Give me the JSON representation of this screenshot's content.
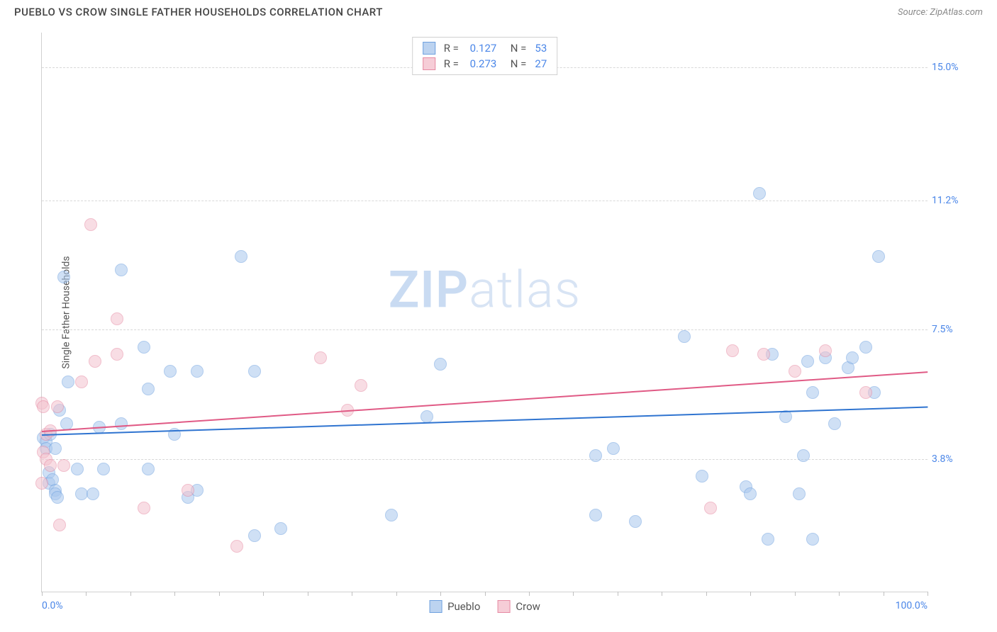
{
  "header": {
    "title": "PUEBLO VS CROW SINGLE FATHER HOUSEHOLDS CORRELATION CHART",
    "source": "Source: ZipAtlas.com"
  },
  "watermark": {
    "bold": "ZIP",
    "light": "atlas"
  },
  "chart": {
    "type": "scatter",
    "ylabel": "Single Father Households",
    "background_color": "#ffffff",
    "grid_color": "#d8d8d8",
    "axis_color": "#d0d0d0",
    "tick_color": "#4a86e8",
    "xlim": [
      0,
      100
    ],
    "ylim": [
      0,
      16
    ],
    "x_ticks_minor": [
      0,
      5,
      10,
      15,
      20,
      25,
      30,
      35,
      40,
      45,
      50,
      55,
      60,
      65,
      70,
      75,
      80,
      85,
      90,
      95,
      100
    ],
    "x_labels": [
      {
        "value": 0,
        "label": "0.0%"
      },
      {
        "value": 100,
        "label": "100.0%"
      }
    ],
    "y_gridlines": [
      {
        "value": 3.8,
        "label": "3.8%"
      },
      {
        "value": 7.5,
        "label": "7.5%"
      },
      {
        "value": 11.2,
        "label": "11.2%"
      },
      {
        "value": 15.0,
        "label": "15.0%"
      }
    ],
    "point_radius": 9,
    "point_opacity": 0.55,
    "series": [
      {
        "name": "Pueblo",
        "color_fill": "#a9c8ee",
        "color_stroke": "#6fa1df",
        "swatch_fill": "#bcd3f0",
        "swatch_stroke": "#6fa1df",
        "R": "0.127",
        "N": "53",
        "trend": {
          "y_at_x0": 4.5,
          "y_at_x100": 5.3,
          "color": "#2f74d0",
          "width": 2
        },
        "points": [
          [
            0.2,
            4.4
          ],
          [
            0.5,
            4.3
          ],
          [
            0.5,
            4.1
          ],
          [
            0.8,
            3.4
          ],
          [
            0.8,
            3.1
          ],
          [
            1.0,
            4.5
          ],
          [
            1.2,
            3.2
          ],
          [
            1.5,
            4.1
          ],
          [
            1.5,
            2.9
          ],
          [
            1.5,
            2.8
          ],
          [
            1.8,
            2.7
          ],
          [
            2.0,
            5.2
          ],
          [
            2.5,
            9.0
          ],
          [
            2.8,
            4.8
          ],
          [
            3.0,
            6.0
          ],
          [
            4.0,
            3.5
          ],
          [
            4.5,
            2.8
          ],
          [
            5.8,
            2.8
          ],
          [
            6.5,
            4.7
          ],
          [
            7.0,
            3.5
          ],
          [
            9.0,
            4.8
          ],
          [
            9.0,
            9.2
          ],
          [
            11.5,
            7.0
          ],
          [
            12.0,
            5.8
          ],
          [
            12.0,
            3.5
          ],
          [
            14.5,
            6.3
          ],
          [
            15.0,
            4.5
          ],
          [
            16.5,
            2.7
          ],
          [
            17.5,
            2.9
          ],
          [
            17.5,
            6.3
          ],
          [
            22.5,
            9.6
          ],
          [
            24.0,
            1.6
          ],
          [
            24.0,
            6.3
          ],
          [
            27.0,
            1.8
          ],
          [
            39.5,
            2.2
          ],
          [
            43.5,
            5.0
          ],
          [
            45.0,
            6.5
          ],
          [
            62.5,
            3.9
          ],
          [
            62.5,
            2.2
          ],
          [
            64.5,
            4.1
          ],
          [
            67.0,
            2.0
          ],
          [
            72.5,
            7.3
          ],
          [
            74.5,
            3.3
          ],
          [
            79.5,
            3.0
          ],
          [
            80.0,
            2.8
          ],
          [
            81.0,
            11.4
          ],
          [
            82.0,
            1.5
          ],
          [
            82.5,
            6.8
          ],
          [
            84.0,
            5.0
          ],
          [
            85.5,
            2.8
          ],
          [
            86.0,
            3.9
          ],
          [
            86.5,
            6.6
          ],
          [
            87.0,
            1.5
          ],
          [
            87.0,
            5.7
          ],
          [
            88.5,
            6.7
          ],
          [
            89.5,
            4.8
          ],
          [
            91.0,
            6.4
          ],
          [
            91.5,
            6.7
          ],
          [
            93.0,
            7.0
          ],
          [
            94.0,
            5.7
          ],
          [
            94.5,
            9.6
          ]
        ]
      },
      {
        "name": "Crow",
        "color_fill": "#f3c2ce",
        "color_stroke": "#e68aa3",
        "swatch_fill": "#f6cdd7",
        "swatch_stroke": "#e68aa3",
        "R": "0.273",
        "N": "27",
        "trend": {
          "y_at_x0": 4.6,
          "y_at_x100": 6.3,
          "color": "#e05a85",
          "width": 2
        },
        "points": [
          [
            0.0,
            3.1
          ],
          [
            0.0,
            5.4
          ],
          [
            0.2,
            5.3
          ],
          [
            0.2,
            4.0
          ],
          [
            0.5,
            4.5
          ],
          [
            0.5,
            3.8
          ],
          [
            1.0,
            3.6
          ],
          [
            1.0,
            4.6
          ],
          [
            1.8,
            5.3
          ],
          [
            2.0,
            1.9
          ],
          [
            2.5,
            3.6
          ],
          [
            4.5,
            6.0
          ],
          [
            5.5,
            10.5
          ],
          [
            6.0,
            6.6
          ],
          [
            8.5,
            6.8
          ],
          [
            8.5,
            7.8
          ],
          [
            11.5,
            2.4
          ],
          [
            16.5,
            2.9
          ],
          [
            22.0,
            1.3
          ],
          [
            31.5,
            6.7
          ],
          [
            34.5,
            5.2
          ],
          [
            36.0,
            5.9
          ],
          [
            75.5,
            2.4
          ],
          [
            78.0,
            6.9
          ],
          [
            81.5,
            6.8
          ],
          [
            85.0,
            6.3
          ],
          [
            88.5,
            6.9
          ],
          [
            93.0,
            5.7
          ]
        ]
      }
    ],
    "legend_bottom": [
      {
        "label": "Pueblo",
        "series": 0
      },
      {
        "label": "Crow",
        "series": 1
      }
    ]
  }
}
